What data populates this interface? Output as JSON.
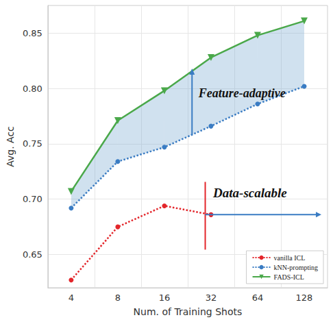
{
  "chart_data": {
    "type": "line",
    "x_label": "Num. of Training Shots",
    "y_label": "Avg. Acc",
    "categories": [
      "4",
      "8",
      "16",
      "32",
      "64",
      "128"
    ],
    "series": [
      {
        "name": "vanilla ICL",
        "color": "#e3262b",
        "marker": "circle",
        "line_style": "dotted",
        "values": [
          0.627,
          0.675,
          0.694,
          0.686,
          null,
          null
        ]
      },
      {
        "name": "kNN-prompting",
        "color": "#3a7cc3",
        "marker": "circle",
        "line_style": "dotted",
        "values": [
          0.692,
          0.734,
          0.747,
          0.766,
          0.786,
          0.802
        ]
      },
      {
        "name": "FADS-ICL",
        "color": "#4aa84a",
        "marker": "triangle_down",
        "line_style": "solid",
        "values": [
          0.707,
          0.771,
          0.798,
          0.828,
          0.848,
          0.861
        ]
      }
    ],
    "annotations": [
      "Feature-adaptive",
      "Data-scalable"
    ],
    "ylim": [
      0.62,
      0.875
    ],
    "yticks": [
      0.65,
      {
        "value": 0.7,
        "label": "0.70"
      },
      0.75,
      {
        "value": 0.8,
        "label": "0.80"
      },
      0.85
    ],
    "grid": true,
    "legend": "lower right"
  }
}
